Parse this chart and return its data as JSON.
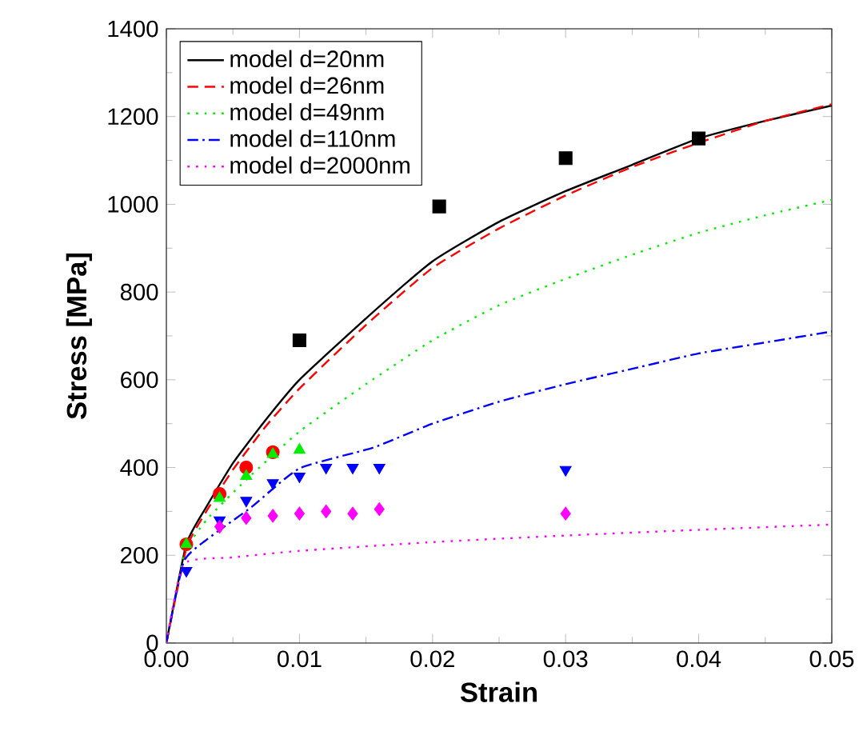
{
  "chart_data": {
    "type": "line",
    "xlabel": "Strain",
    "ylabel": "Stress [MPa]",
    "xlim": [
      0,
      0.05
    ],
    "ylim": [
      0,
      1400
    ],
    "xticks": [
      {
        "value": 0,
        "label": "0.00"
      },
      {
        "value": 0.01,
        "label": "0.01"
      },
      {
        "value": 0.02,
        "label": "0.02"
      },
      {
        "value": 0.03,
        "label": "0.03"
      },
      {
        "value": 0.04,
        "label": "0.04"
      },
      {
        "value": 0.05,
        "label": "0.05"
      }
    ],
    "yticks": [
      0,
      200,
      400,
      600,
      800,
      1000,
      1200,
      1400
    ],
    "grid": false,
    "legend": "top left",
    "series": [
      {
        "name": "model d=20nm",
        "line_style": "solid",
        "color": "#000000",
        "x": [
          0,
          0.0015,
          0.003,
          0.005,
          0.0075,
          0.01,
          0.015,
          0.02,
          0.025,
          0.03,
          0.035,
          0.04,
          0.045,
          0.05
        ],
        "values": [
          0,
          225,
          310,
          410,
          510,
          600,
          740,
          870,
          960,
          1030,
          1090,
          1150,
          1190,
          1225
        ]
      },
      {
        "name": "model d=26nm",
        "line_style": "dashed",
        "color": "#ff0000",
        "x": [
          0,
          0.0015,
          0.003,
          0.005,
          0.0075,
          0.01,
          0.015,
          0.02,
          0.025,
          0.03,
          0.035,
          0.04,
          0.045,
          0.05
        ],
        "values": [
          0,
          215,
          300,
          395,
          495,
          580,
          725,
          855,
          945,
          1020,
          1085,
          1140,
          1190,
          1228
        ]
      },
      {
        "name": "model d=49nm",
        "line_style": "dotted",
        "color": "#00ee00",
        "x": [
          0,
          0.0013,
          0.003,
          0.006,
          0.01,
          0.015,
          0.02,
          0.025,
          0.03,
          0.035,
          0.04,
          0.045,
          0.05
        ],
        "values": [
          0,
          200,
          280,
          372,
          482,
          590,
          690,
          770,
          830,
          885,
          935,
          975,
          1010
        ]
      },
      {
        "name": "model d=110nm",
        "line_style": "dashdot",
        "color": "#0000ff",
        "x": [
          0,
          0.0013,
          0.003,
          0.0064,
          0.01,
          0.0155,
          0.02,
          0.025,
          0.03,
          0.035,
          0.04,
          0.045,
          0.05
        ],
        "values": [
          0,
          185,
          235,
          310,
          398,
          445,
          500,
          550,
          590,
          625,
          660,
          685,
          710
        ]
      },
      {
        "name": "model d=2000nm",
        "line_style": "dotted",
        "color": "#ff00ff",
        "x": [
          0,
          0.0013,
          0.005,
          0.01,
          0.02,
          0.03,
          0.04,
          0.05
        ],
        "values": [
          0,
          180,
          195,
          210,
          230,
          245,
          258,
          270
        ]
      },
      {
        "type": "scatter",
        "marker": "square",
        "color": "#000000",
        "x": [
          0.01,
          0.0205,
          0.03,
          0.04
        ],
        "values": [
          690,
          995,
          1105,
          1150
        ]
      },
      {
        "type": "scatter",
        "marker": "circle",
        "color": "#ff0000",
        "x": [
          0.0015,
          0.004,
          0.006,
          0.008
        ],
        "values": [
          225,
          340,
          400,
          435
        ]
      },
      {
        "type": "scatter",
        "marker": "triangle",
        "color": "#00ee00",
        "x": [
          0.0015,
          0.004,
          0.006,
          0.008,
          0.01
        ],
        "values": [
          225,
          330,
          380,
          430,
          440
        ]
      },
      {
        "type": "scatter",
        "marker": "triangle down",
        "color": "#0000ff",
        "x": [
          0.0015,
          0.004,
          0.006,
          0.008,
          0.01,
          0.012,
          0.014,
          0.016,
          0.03
        ],
        "values": [
          165,
          280,
          325,
          365,
          380,
          400,
          400,
          400,
          395
        ]
      },
      {
        "type": "scatter",
        "marker": "diamond",
        "color": "#ff00ff",
        "x": [
          0.004,
          0.006,
          0.008,
          0.01,
          0.012,
          0.014,
          0.016,
          0.03
        ],
        "values": [
          265,
          285,
          290,
          295,
          300,
          295,
          305,
          295
        ]
      }
    ]
  }
}
